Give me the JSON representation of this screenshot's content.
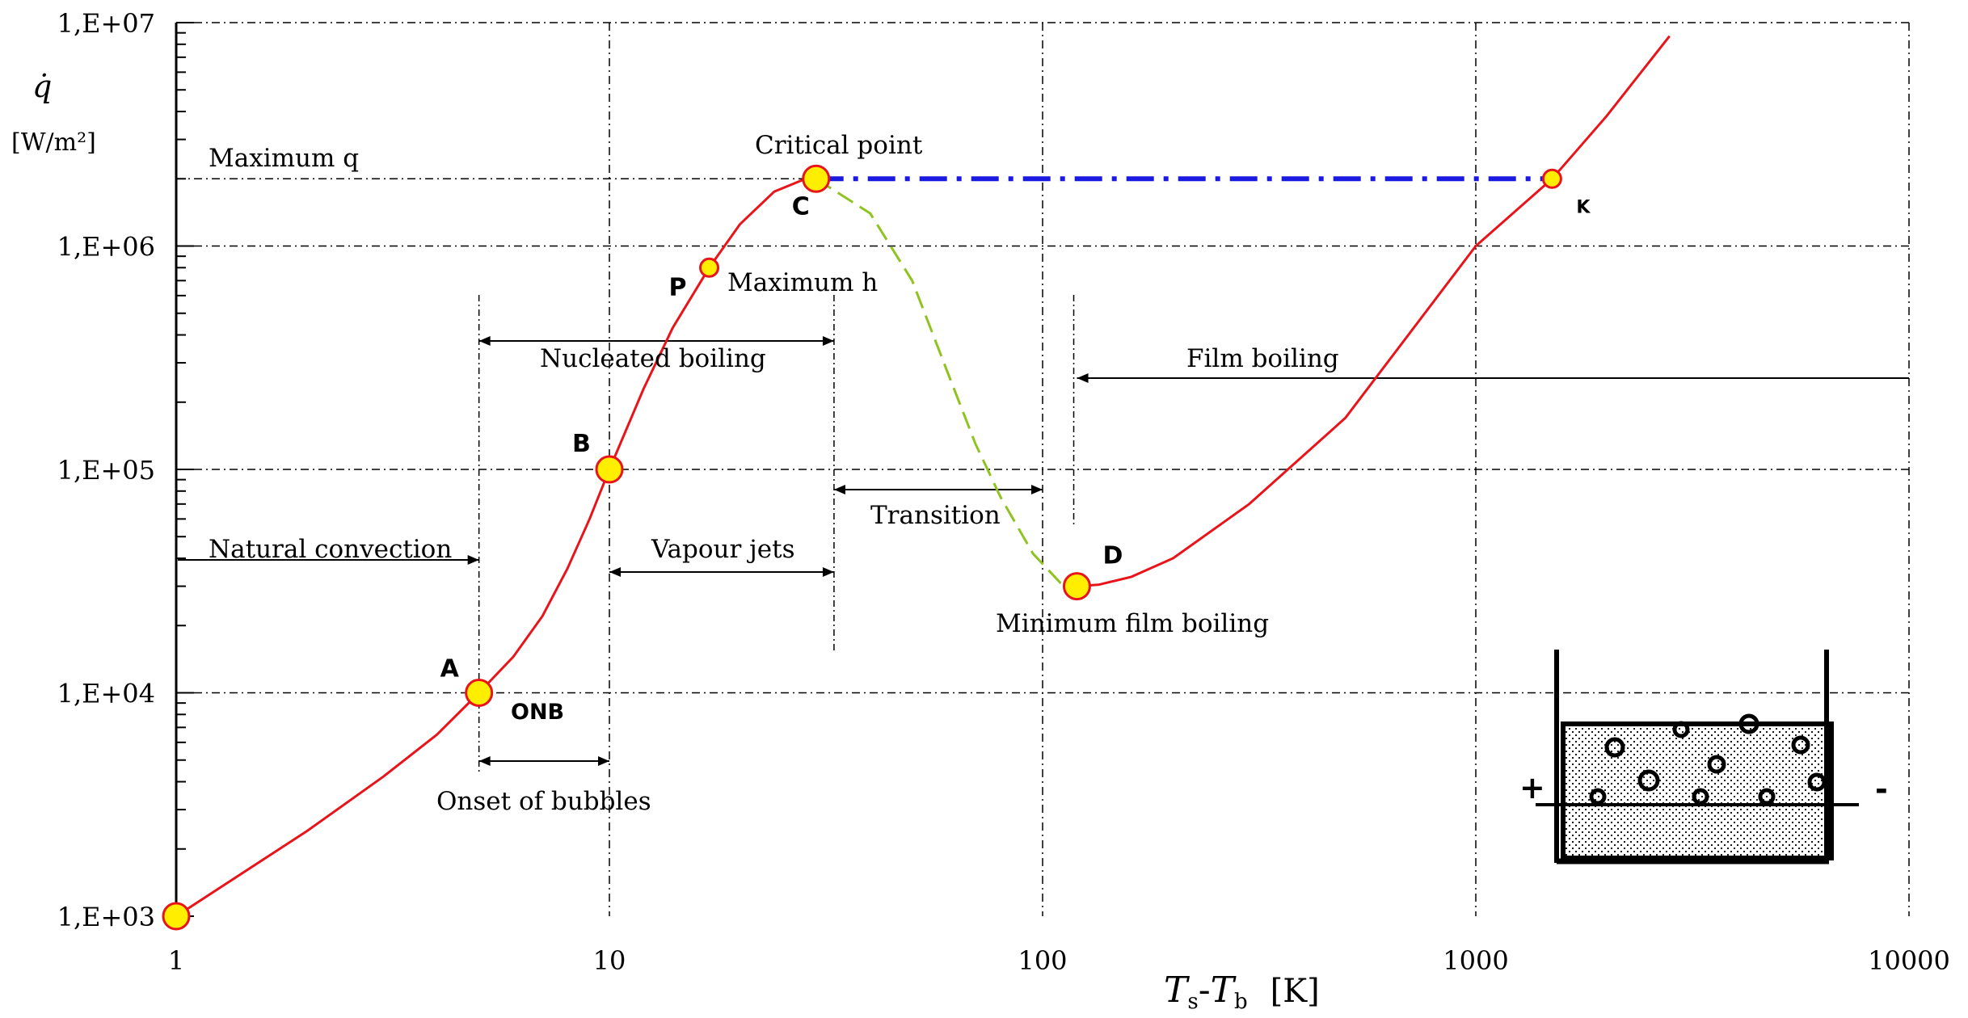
{
  "chart_data": {
    "type": "line",
    "x_scale": "log",
    "y_scale": "log",
    "xlim": [
      1,
      10000
    ],
    "ylim": [
      1000,
      10000000
    ],
    "grid": true,
    "x_ticks": [
      {
        "value": 1,
        "label": "1"
      },
      {
        "value": 10,
        "label": "10"
      },
      {
        "value": 100,
        "label": "100"
      },
      {
        "value": 1000,
        "label": "1000"
      },
      {
        "value": 10000,
        "label": "10000"
      }
    ],
    "y_ticks": [
      {
        "value": 1000,
        "label": "1,E+03"
      },
      {
        "value": 10000,
        "label": "1,E+04"
      },
      {
        "value": 100000,
        "label": "1,E+05"
      },
      {
        "value": 1000000,
        "label": "1,E+06"
      },
      {
        "value": 10000000,
        "label": "1,E+07"
      }
    ],
    "ylabel_symbol": "q̇",
    "ylabel_unit": "[W/m²]",
    "xlabel_parts": {
      "t1": "T",
      "s1": "s",
      "dash": "-",
      "t2": "T",
      "s2": "b",
      "unit": "[K]"
    },
    "series": [
      {
        "color": "#e8141a",
        "style": "solid",
        "points": [
          [
            1,
            1000
          ],
          [
            2,
            2400
          ],
          [
            3,
            4200
          ],
          [
            4,
            6500
          ],
          [
            5,
            10000
          ],
          [
            6,
            14500
          ],
          [
            7,
            22000
          ],
          [
            8,
            36000
          ],
          [
            9,
            60000
          ],
          [
            10,
            100000
          ],
          [
            12,
            230000
          ],
          [
            14,
            430000
          ],
          [
            17,
            800000
          ],
          [
            20,
            1250000
          ],
          [
            24,
            1750000
          ],
          [
            28,
            1980000
          ],
          [
            30,
            2000000
          ]
        ]
      },
      {
        "color": "#8fc31f",
        "style": "dashed",
        "points": [
          [
            30,
            2000000
          ],
          [
            40,
            1400000
          ],
          [
            50,
            700000
          ],
          [
            60,
            280000
          ],
          [
            70,
            130000
          ],
          [
            80,
            75000
          ],
          [
            95,
            42000
          ],
          [
            110,
            31000
          ],
          [
            120,
            30000
          ]
        ]
      },
      {
        "color": "#e8141a",
        "style": "solid",
        "points": [
          [
            120,
            30000
          ],
          [
            135,
            30500
          ],
          [
            160,
            33000
          ],
          [
            200,
            40000
          ],
          [
            300,
            70000
          ],
          [
            500,
            170000
          ],
          [
            1000,
            1000000
          ],
          [
            1500,
            2000000
          ],
          [
            2000,
            3800000
          ],
          [
            2800,
            8700000
          ]
        ]
      },
      {
        "color": "#1a1ae0",
        "style": "dashdot",
        "points": [
          [
            30,
            2000000
          ],
          [
            1500,
            2000000
          ]
        ]
      }
    ],
    "marked_points": [
      {
        "label": "",
        "x": 1,
        "y": 1000
      },
      {
        "label": "A",
        "x": 5,
        "y": 10000
      },
      {
        "label": "B",
        "x": 10,
        "y": 100000
      },
      {
        "label": "P",
        "x": 17,
        "y": 800000,
        "small": true
      },
      {
        "label": "C",
        "x": 30,
        "y": 2000000
      },
      {
        "label": "D",
        "x": 120,
        "y": 30000
      },
      {
        "label": "K",
        "x": 1500,
        "y": 2000000,
        "small": true
      }
    ],
    "annotations": {
      "maximum_q": "Maximum q",
      "critical_point": "Critical point",
      "maximum_h": "Maximum h",
      "nucleated_boiling": "Nucleated boiling",
      "film_boiling": "Film boiling",
      "natural_convection": "Natural convection",
      "vapour_jets": "Vapour jets",
      "transition": "Transition",
      "minimum_film_boiling": "Minimum film boiling",
      "onb": "ONB",
      "onset_of_bubbles": "Onset of bubbles",
      "plus": "+",
      "minus": "-"
    },
    "colors": {
      "curve": "#e8141a",
      "transition_curve": "#8fc31f",
      "max_q_line": "#1a1ae0",
      "marker_fill": "#ffee00",
      "marker_stroke": "#e8141a"
    }
  }
}
